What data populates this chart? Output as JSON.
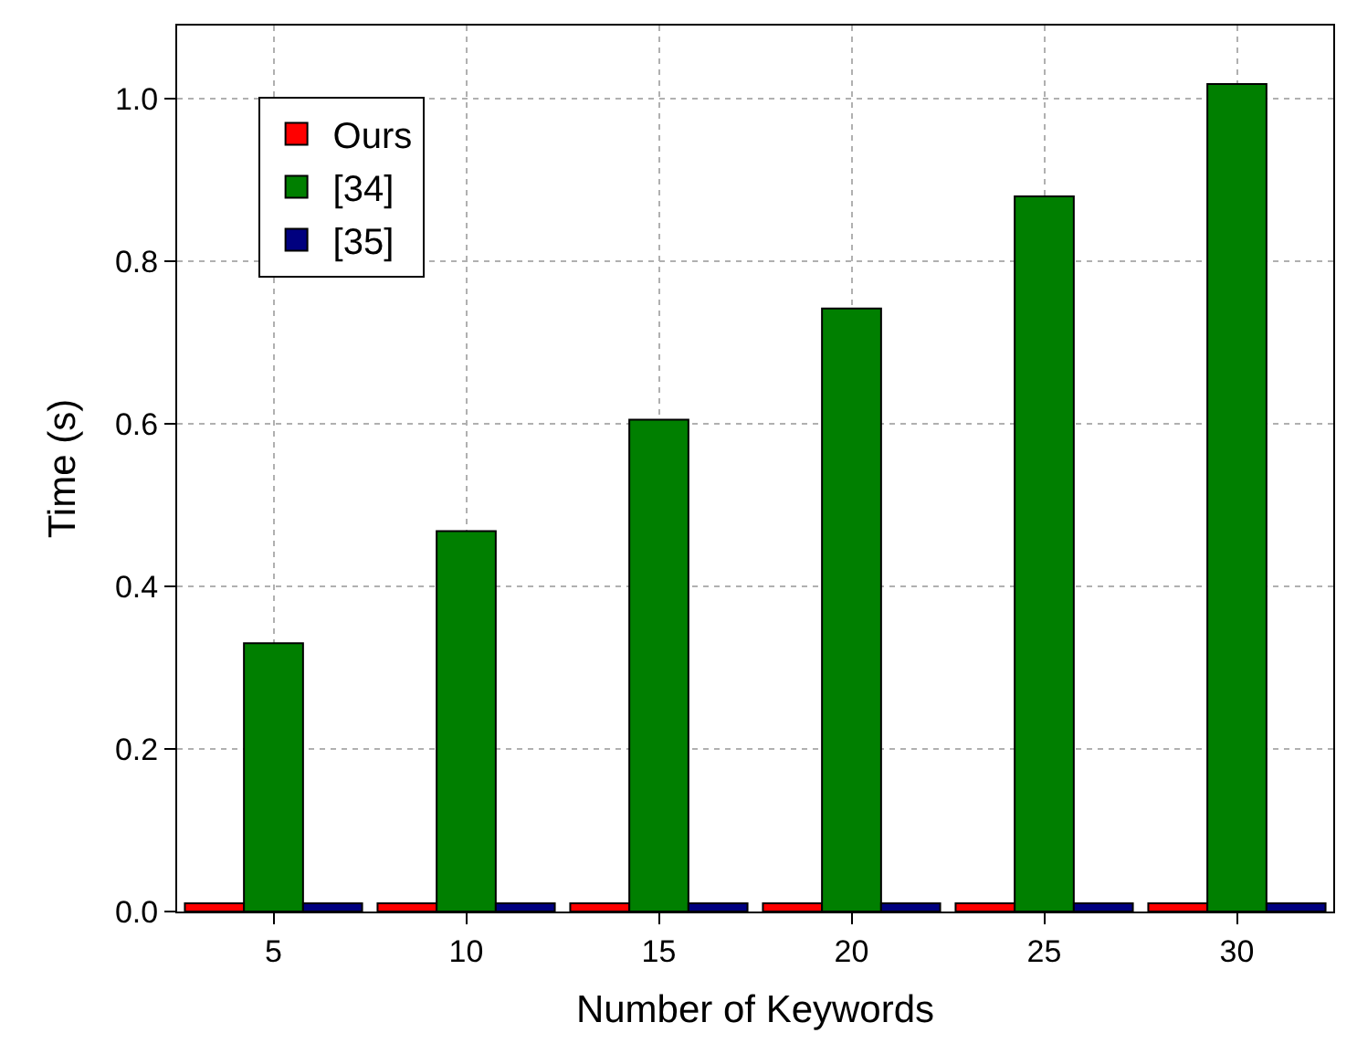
{
  "chart_data": {
    "type": "bar",
    "xlabel": "Number of Keywords",
    "ylabel": "Time (s)",
    "categories": [
      "5",
      "10",
      "15",
      "20",
      "25",
      "30"
    ],
    "series": [
      {
        "name": "Ours",
        "color": "#ff0000",
        "values": [
          0.01,
          0.01,
          0.01,
          0.01,
          0.01,
          0.01
        ]
      },
      {
        "name": "[34]",
        "color": "#007f00",
        "values": [
          0.33,
          0.468,
          0.605,
          0.742,
          0.88,
          1.018
        ]
      },
      {
        "name": "[35]",
        "color": "#00007f",
        "values": [
          0.01,
          0.01,
          0.01,
          0.01,
          0.01,
          0.01
        ]
      }
    ],
    "ylim": [
      0,
      1.09
    ],
    "yticks": [
      {
        "value": 0,
        "label": "0.0"
      },
      0.2,
      0.4,
      0.6,
      0.8,
      {
        "value": 1,
        "label": "1.0"
      }
    ],
    "grid": true,
    "legend": "top left"
  }
}
